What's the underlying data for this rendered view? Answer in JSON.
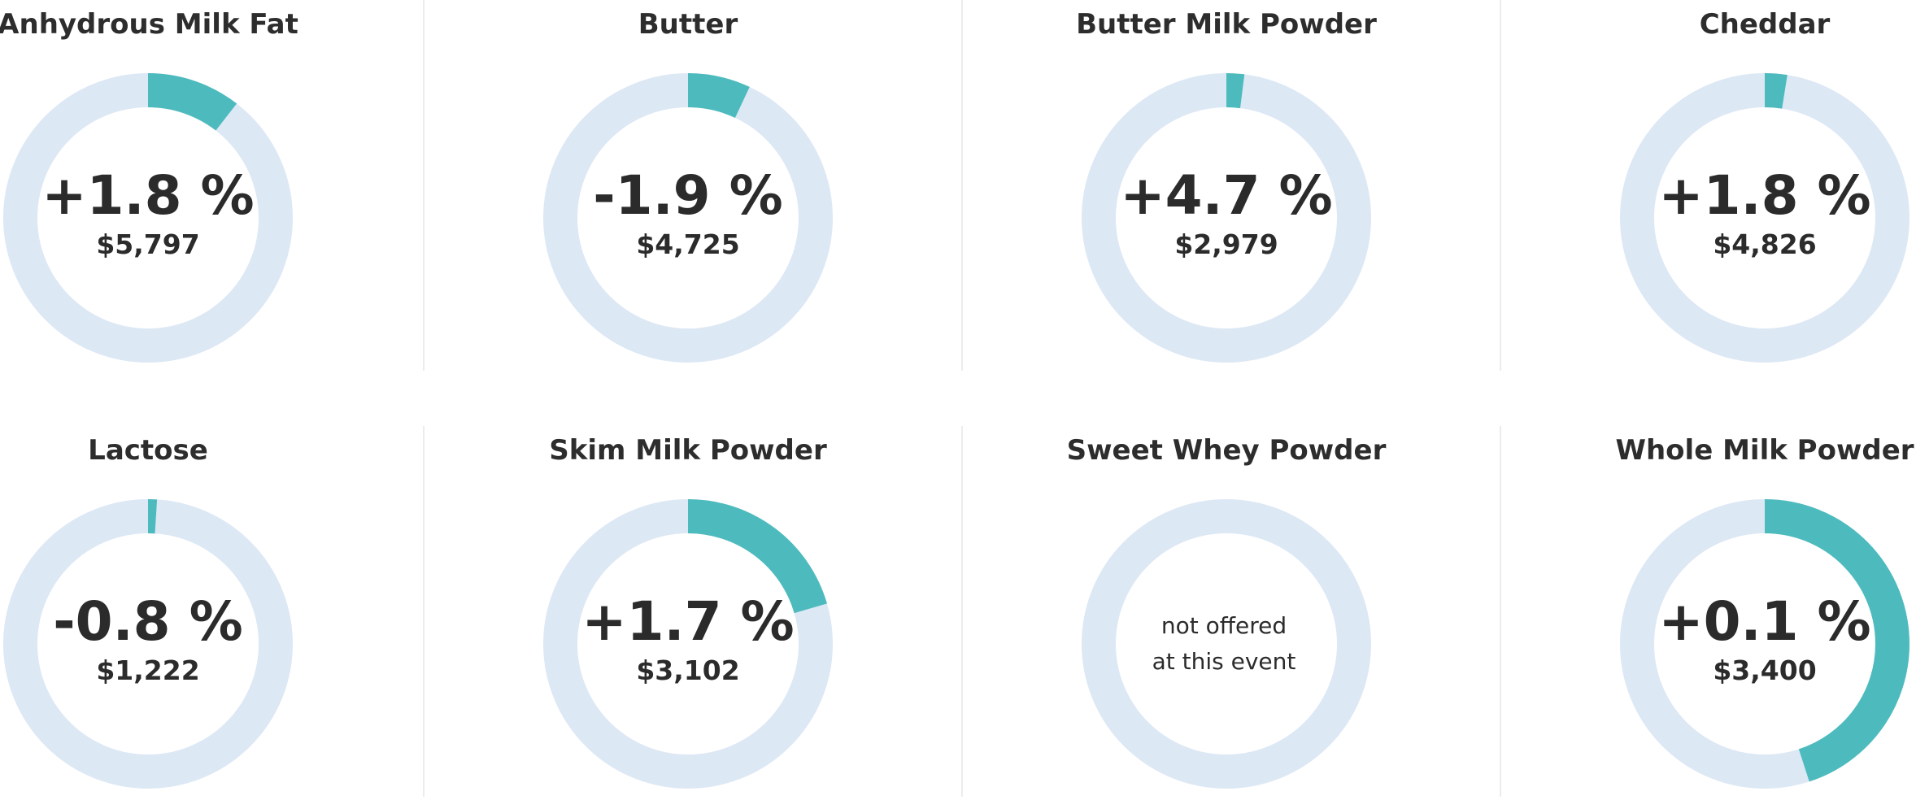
{
  "colors": {
    "track": "#dde8f5",
    "fill": "#4dbbbe"
  },
  "chart_data": {
    "type": "donut-grid",
    "products": [
      {
        "name": "Anhydrous Milk Fat",
        "change": "+1.8 %",
        "price": "$5,797",
        "fraction": 0.105,
        "offered": true
      },
      {
        "name": "Butter",
        "change": "-1.9 %",
        "price": "$4,725",
        "fraction": 0.07,
        "offered": true
      },
      {
        "name": "Butter Milk Powder",
        "change": "+4.7 %",
        "price": "$2,979",
        "fraction": 0.02,
        "offered": true
      },
      {
        "name": "Cheddar",
        "change": "+1.8 %",
        "price": "$4,826",
        "fraction": 0.025,
        "offered": true
      },
      {
        "name": "Lactose",
        "change": "-0.8 %",
        "price": "$1,222",
        "fraction": 0.01,
        "offered": true
      },
      {
        "name": "Skim Milk Powder",
        "change": "+1.7 %",
        "price": "$3,102",
        "fraction": 0.205,
        "offered": true
      },
      {
        "name": "Sweet Whey Powder",
        "change": "",
        "price": "",
        "fraction": 0,
        "offered": false,
        "note_line1": "not offered",
        "note_line2": "at this event"
      },
      {
        "name": "Whole Milk Powder",
        "change": "+0.1 %",
        "price": "$3,400",
        "fraction": 0.45,
        "offered": true
      }
    ]
  }
}
